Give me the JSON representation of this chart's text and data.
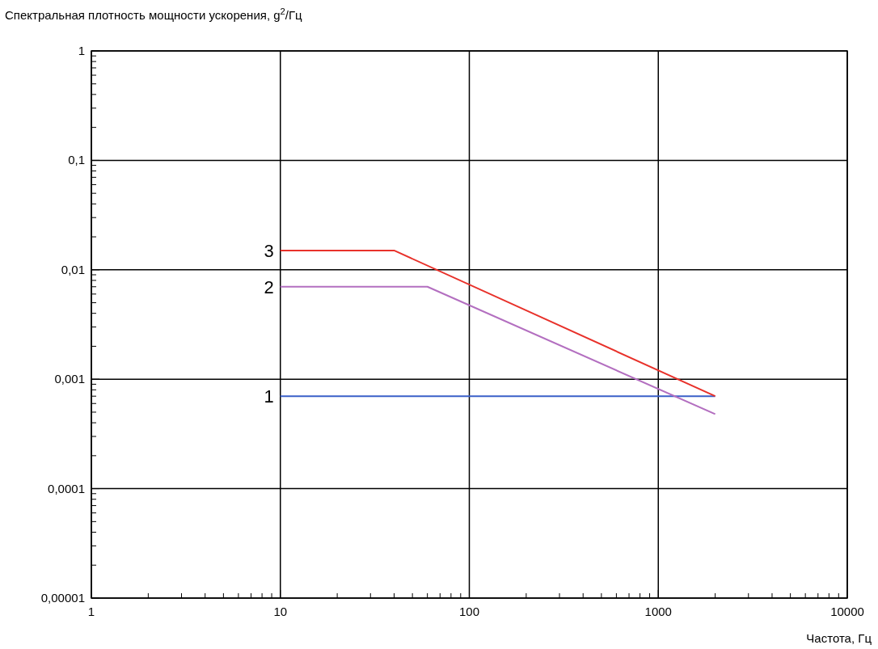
{
  "chart_data": {
    "type": "line",
    "ylabel": "Спектральная плотность мощности ускорения, g$^{2}$/Гц",
    "xlabel": "Частота, Гц",
    "log": "xy",
    "grid": true,
    "marker": "none",
    "line_style": "solid",
    "xlim": [
      1,
      10000
    ],
    "ylim": [
      1e-05,
      1
    ],
    "xticks": [
      1,
      {
        "value": 2,
        "label": null
      },
      {
        "value": 3,
        "label": null
      },
      {
        "value": 4,
        "label": null
      },
      {
        "value": 5,
        "label": null
      },
      {
        "value": 6,
        "label": null
      },
      {
        "value": 7,
        "label": null
      },
      {
        "value": 8,
        "label": null
      },
      {
        "value": 9,
        "label": null
      },
      10,
      {
        "value": 20,
        "label": null
      },
      {
        "value": 30,
        "label": null
      },
      {
        "value": 40,
        "label": null
      },
      {
        "value": 50,
        "label": null
      },
      {
        "value": 60,
        "label": null
      },
      {
        "value": 70,
        "label": null
      },
      {
        "value": 80,
        "label": null
      },
      {
        "value": 90,
        "label": null
      },
      100,
      {
        "value": 200,
        "label": null
      },
      {
        "value": 300,
        "label": null
      },
      {
        "value": 400,
        "label": null
      },
      {
        "value": 500,
        "label": null
      },
      {
        "value": 600,
        "label": null
      },
      {
        "value": 700,
        "label": null
      },
      {
        "value": 800,
        "label": null
      },
      {
        "value": 900,
        "label": null
      },
      1000,
      {
        "value": 2000,
        "label": null
      },
      {
        "value": 3000,
        "label": null
      },
      {
        "value": 4000,
        "label": null
      },
      {
        "value": 5000,
        "label": null
      },
      {
        "value": 6000,
        "label": null
      },
      {
        "value": 7000,
        "label": null
      },
      {
        "value": 8000,
        "label": null
      },
      {
        "value": 9000,
        "label": null
      },
      10000
    ],
    "yticks": [
      {
        "value": 1e-05,
        "label": "0,00001"
      },
      {
        "value": 2e-05,
        "label": null
      },
      {
        "value": 3e-05,
        "label": null
      },
      {
        "value": 4e-05,
        "label": null
      },
      {
        "value": 5e-05,
        "label": null
      },
      {
        "value": 6e-05,
        "label": null
      },
      {
        "value": 7e-05,
        "label": null
      },
      {
        "value": 8e-05,
        "label": null
      },
      {
        "value": 9e-05,
        "label": null
      },
      {
        "value": 0.0001,
        "label": "0,0001"
      },
      {
        "value": 0.0002,
        "label": null
      },
      {
        "value": 0.0003,
        "label": null
      },
      {
        "value": 0.0004,
        "label": null
      },
      {
        "value": 0.0005,
        "label": null
      },
      {
        "value": 0.0006,
        "label": null
      },
      {
        "value": 0.0007,
        "label": null
      },
      {
        "value": 0.0008,
        "label": null
      },
      {
        "value": 0.0009,
        "label": null
      },
      {
        "value": 0.001,
        "label": "0,001"
      },
      {
        "value": 0.002,
        "label": null
      },
      {
        "value": 0.003,
        "label": null
      },
      {
        "value": 0.004,
        "label": null
      },
      {
        "value": 0.005,
        "label": null
      },
      {
        "value": 0.006,
        "label": null
      },
      {
        "value": 0.007,
        "label": null
      },
      {
        "value": 0.008,
        "label": null
      },
      {
        "value": 0.009,
        "label": null
      },
      {
        "value": 0.01,
        "label": "0,01"
      },
      {
        "value": 0.02,
        "label": null
      },
      {
        "value": 0.03,
        "label": null
      },
      {
        "value": 0.04,
        "label": null
      },
      {
        "value": 0.05,
        "label": null
      },
      {
        "value": 0.06,
        "label": null
      },
      {
        "value": 0.07,
        "label": null
      },
      {
        "value": 0.08,
        "label": null
      },
      {
        "value": 0.09,
        "label": null
      },
      {
        "value": 0.1,
        "label": "0,1"
      },
      {
        "value": 0.2,
        "label": null
      },
      {
        "value": 0.3,
        "label": null
      },
      {
        "value": 0.4,
        "label": null
      },
      {
        "value": 0.5,
        "label": null
      },
      {
        "value": 0.6,
        "label": null
      },
      {
        "value": 0.7,
        "label": null
      },
      {
        "value": 0.8,
        "label": null
      },
      {
        "value": 0.9,
        "label": null
      },
      {
        "value": 1,
        "label": "1"
      }
    ],
    "series": [
      {
        "name": "1",
        "color": "#3a5fc8",
        "x": [
          10,
          2000
        ],
        "values": [
          0.0007,
          0.0007
        ]
      },
      {
        "name": "2",
        "color": "#b36fc0",
        "x": [
          10,
          60,
          2000
        ],
        "values": [
          0.007,
          0.007,
          0.00048
        ]
      },
      {
        "name": "3",
        "color": "#e8312a",
        "x": [
          10,
          40,
          2000
        ],
        "values": [
          0.015,
          0.015,
          0.0007
        ]
      }
    ]
  }
}
